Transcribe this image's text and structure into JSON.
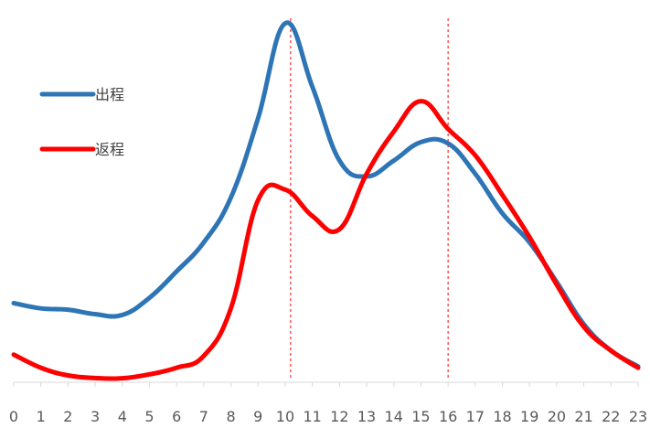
{
  "chart_data": {
    "type": "line",
    "title": "",
    "xlabel": "",
    "ylabel": "",
    "categories": [
      "0",
      "1",
      "2",
      "3",
      "4",
      "5",
      "6",
      "7",
      "8",
      "9",
      "10",
      "11",
      "12",
      "13",
      "14",
      "15",
      "16",
      "17",
      "18",
      "19",
      "20",
      "21",
      "22",
      "23"
    ],
    "series": [
      {
        "name": "出程",
        "color": "#2E75B6",
        "values": [
          30,
          28,
          27.5,
          25.8,
          25.5,
          32,
          42,
          53,
          70,
          100,
          136,
          112,
          84,
          78,
          84,
          91,
          90.5,
          79,
          64,
          53,
          38,
          22,
          12,
          6
        ]
      },
      {
        "name": "返程",
        "color": "#FF0000",
        "values": [
          10.5,
          5.5,
          2.6,
          1.6,
          1.5,
          3,
          5.5,
          10,
          28,
          69,
          73,
          63,
          58,
          79,
          95,
          106.5,
          96,
          86,
          71,
          55,
          37,
          21,
          12,
          5.5
        ]
      }
    ],
    "reference_lines": [
      {
        "x": 10.2,
        "color": "#FF0000",
        "style": "dashed"
      },
      {
        "x": 16.0,
        "color": "#FF0000",
        "style": "dashed"
      }
    ],
    "ylim": [
      0,
      140
    ],
    "grid": false,
    "legend": "top-left"
  }
}
